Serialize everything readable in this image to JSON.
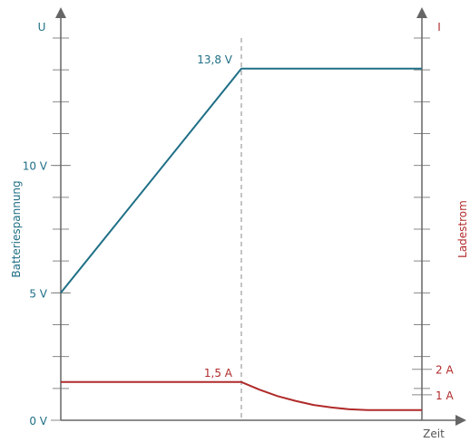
{
  "chart_data": {
    "type": "line",
    "x_label": "Zeit",
    "left_axis": {
      "symbol": "U",
      "label": "Batteriespannung",
      "unit": "V",
      "ylim": [
        0,
        15
      ],
      "ticks": [
        {
          "value": 0,
          "label": "0 V"
        },
        {
          "value": 5,
          "label": "5 V"
        },
        {
          "value": 10,
          "label": "10 V"
        }
      ],
      "minor_step": 1.25,
      "color": "#1f6f86"
    },
    "right_axis": {
      "symbol": "I",
      "label": "Ladestrom",
      "unit": "A",
      "ylim": [
        0,
        15
      ],
      "ticks": [
        {
          "value": 1,
          "label": "1 A"
        },
        {
          "value": 2,
          "label": "2 A"
        }
      ],
      "minor_step": 1.25,
      "color": "#b02a2a"
    },
    "xlim": [
      0,
      10
    ],
    "vline_x": 5,
    "series": [
      {
        "axis": "left",
        "color": "#1f6f86",
        "points": [
          [
            0,
            5
          ],
          [
            5,
            13.8
          ],
          [
            10,
            13.8
          ]
        ],
        "annotation": {
          "x": 5,
          "y": 13.8,
          "text": "13,8 V"
        }
      },
      {
        "axis": "right",
        "color": "#b02a2a",
        "points": [
          [
            0,
            1.5
          ],
          [
            5,
            1.5
          ],
          [
            5.5,
            1.2
          ],
          [
            6,
            0.95
          ],
          [
            6.5,
            0.76
          ],
          [
            7,
            0.6
          ],
          [
            7.5,
            0.5
          ],
          [
            8,
            0.43
          ],
          [
            8.5,
            0.4
          ],
          [
            9,
            0.4
          ],
          [
            9.5,
            0.4
          ],
          [
            10,
            0.4
          ]
        ],
        "annotation": {
          "x": 5,
          "y": 1.5,
          "text": "1,5 A"
        }
      }
    ]
  }
}
